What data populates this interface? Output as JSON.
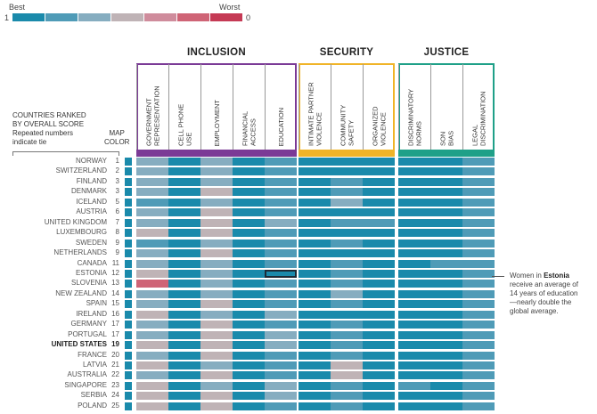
{
  "legend": {
    "best_label": "Best",
    "worst_label": "Worst",
    "min_label": "1",
    "max_label": "0",
    "colors": [
      "#1a8aab",
      "#4f9bb7",
      "#86adc0",
      "#bfb3b6",
      "#cf8c9c",
      "#cf6476",
      "#c53a55"
    ]
  },
  "pillars": [
    {
      "name": "INCLUSION",
      "color": "#7b3a96"
    },
    {
      "name": "SECURITY",
      "color": "#f0b428"
    },
    {
      "name": "JUSTICE",
      "color": "#1fa088"
    }
  ],
  "columns": [
    "GOVERNMENT REPRESENTATION",
    "CELL PHONE USE",
    "EMPLOYMENT",
    "FINANCIAL ACCESS",
    "EDUCATION",
    "INTIMATE PARTNER VIOLENCE",
    "COMMUNITY SAFETY",
    "ORGANIZED VIOLENCE",
    "DISCRIMINATORY NORMS",
    "SON BIAS",
    "LEGAL DISCRIMINATION"
  ],
  "ranked_label": [
    "COUNTRIES RANKED",
    "BY OVERALL SCORE",
    "Repeated numbers",
    "indicate tie"
  ],
  "map_color_label": [
    "MAP",
    "COLOR"
  ],
  "annotation": {
    "prefix": "Women in ",
    "country": "Estonia",
    "rest": [
      "receive an average of",
      "14 years of education",
      "—nearly double the",
      "global average."
    ]
  },
  "chart_data": {
    "type": "heatmap",
    "scale": "color level 0 = Best (1) … 6 = Worst (0)",
    "highlight": {
      "country": "ESTONIA",
      "column": "EDUCATION"
    },
    "rows": [
      {
        "country": "NORWAY",
        "rank": 1,
        "map_level": 0,
        "levels": [
          2,
          0,
          2,
          0,
          1,
          0,
          0,
          0,
          0,
          0,
          1
        ]
      },
      {
        "country": "SWITZERLAND",
        "rank": 2,
        "map_level": 0,
        "levels": [
          2,
          0,
          2,
          0,
          1,
          0,
          0,
          0,
          0,
          0,
          1
        ]
      },
      {
        "country": "FINLAND",
        "rank": 3,
        "map_level": 0,
        "levels": [
          2,
          0,
          2,
          0,
          1,
          0,
          1,
          0,
          0,
          0,
          1
        ]
      },
      {
        "country": "DENMARK",
        "rank": 3,
        "map_level": 0,
        "levels": [
          2,
          0,
          3,
          0,
          1,
          0,
          1,
          0,
          0,
          0,
          1
        ]
      },
      {
        "country": "ICELAND",
        "rank": 5,
        "map_level": 0,
        "levels": [
          1,
          0,
          2,
          0,
          1,
          0,
          2,
          0,
          0,
          0,
          1
        ]
      },
      {
        "country": "AUSTRIA",
        "rank": 6,
        "map_level": 0,
        "levels": [
          2,
          0,
          3,
          0,
          1,
          0,
          0,
          0,
          0,
          0,
          1
        ]
      },
      {
        "country": "UNITED KINGDOM",
        "rank": 7,
        "map_level": 0,
        "levels": [
          2,
          0,
          3,
          0,
          2,
          0,
          1,
          1,
          0,
          0,
          1
        ]
      },
      {
        "country": "LUXEMBOURG",
        "rank": 8,
        "map_level": 0,
        "levels": [
          3,
          0,
          3,
          0,
          1,
          0,
          0,
          0,
          0,
          0,
          1
        ]
      },
      {
        "country": "SWEDEN",
        "rank": 9,
        "map_level": 0,
        "levels": [
          1,
          0,
          2,
          0,
          1,
          0,
          1,
          0,
          0,
          0,
          1
        ]
      },
      {
        "country": "NETHERLANDS",
        "rank": 9,
        "map_level": 0,
        "levels": [
          2,
          0,
          3,
          0,
          1,
          0,
          0,
          0,
          0,
          0,
          1
        ]
      },
      {
        "country": "CANADA",
        "rank": 11,
        "map_level": 0,
        "levels": [
          2,
          0,
          2,
          0,
          1,
          0,
          1,
          0,
          0,
          1,
          1
        ]
      },
      {
        "country": "ESTONIA",
        "rank": 12,
        "map_level": 0,
        "levels": [
          3,
          0,
          2,
          0,
          0,
          0,
          1,
          0,
          0,
          0,
          1
        ]
      },
      {
        "country": "SLOVENIA",
        "rank": 13,
        "map_level": 0,
        "levels": [
          5,
          0,
          2,
          0,
          1,
          0,
          1,
          0,
          0,
          0,
          1
        ]
      },
      {
        "country": "NEW ZEALAND",
        "rank": 14,
        "map_level": 0,
        "levels": [
          2,
          0,
          2,
          0,
          1,
          0,
          2,
          0,
          0,
          0,
          1
        ]
      },
      {
        "country": "SPAIN",
        "rank": 15,
        "map_level": 0,
        "levels": [
          2,
          0,
          3,
          0,
          1,
          0,
          1,
          0,
          0,
          0,
          1
        ]
      },
      {
        "country": "IRELAND",
        "rank": 16,
        "map_level": 0,
        "levels": [
          3,
          0,
          2,
          0,
          2,
          0,
          0,
          0,
          0,
          0,
          1
        ]
      },
      {
        "country": "GERMANY",
        "rank": 17,
        "map_level": 0,
        "levels": [
          2,
          0,
          3,
          0,
          1,
          0,
          1,
          0,
          0,
          0,
          1
        ]
      },
      {
        "country": "PORTUGAL",
        "rank": 17,
        "map_level": 0,
        "levels": [
          2,
          0,
          3,
          0,
          2,
          0,
          1,
          0,
          0,
          0,
          1
        ]
      },
      {
        "country": "UNITED STATES",
        "rank": 19,
        "map_level": 0,
        "levels": [
          3,
          0,
          3,
          0,
          2,
          0,
          1,
          0,
          0,
          0,
          1
        ]
      },
      {
        "country": "FRANCE",
        "rank": 20,
        "map_level": 0,
        "levels": [
          2,
          0,
          3,
          0,
          1,
          0,
          1,
          0,
          0,
          0,
          1
        ]
      },
      {
        "country": "LATVIA",
        "rank": 21,
        "map_level": 0,
        "levels": [
          3,
          0,
          2,
          0,
          1,
          0,
          3,
          0,
          0,
          0,
          1
        ]
      },
      {
        "country": "AUSTRALIA",
        "rank": 22,
        "map_level": 0,
        "levels": [
          2,
          0,
          3,
          0,
          1,
          0,
          3,
          0,
          0,
          0,
          1
        ]
      },
      {
        "country": "SINGAPORE",
        "rank": 23,
        "map_level": 0,
        "levels": [
          3,
          0,
          2,
          0,
          2,
          0,
          1,
          0,
          1,
          0,
          1
        ]
      },
      {
        "country": "SERBIA",
        "rank": 24,
        "map_level": 0,
        "levels": [
          3,
          0,
          3,
          0,
          2,
          0,
          1,
          0,
          0,
          0,
          1
        ]
      },
      {
        "country": "POLAND",
        "rank": 25,
        "map_level": 0,
        "levels": [
          3,
          0,
          3,
          0,
          1,
          0,
          1,
          0,
          0,
          0,
          1
        ]
      }
    ]
  }
}
